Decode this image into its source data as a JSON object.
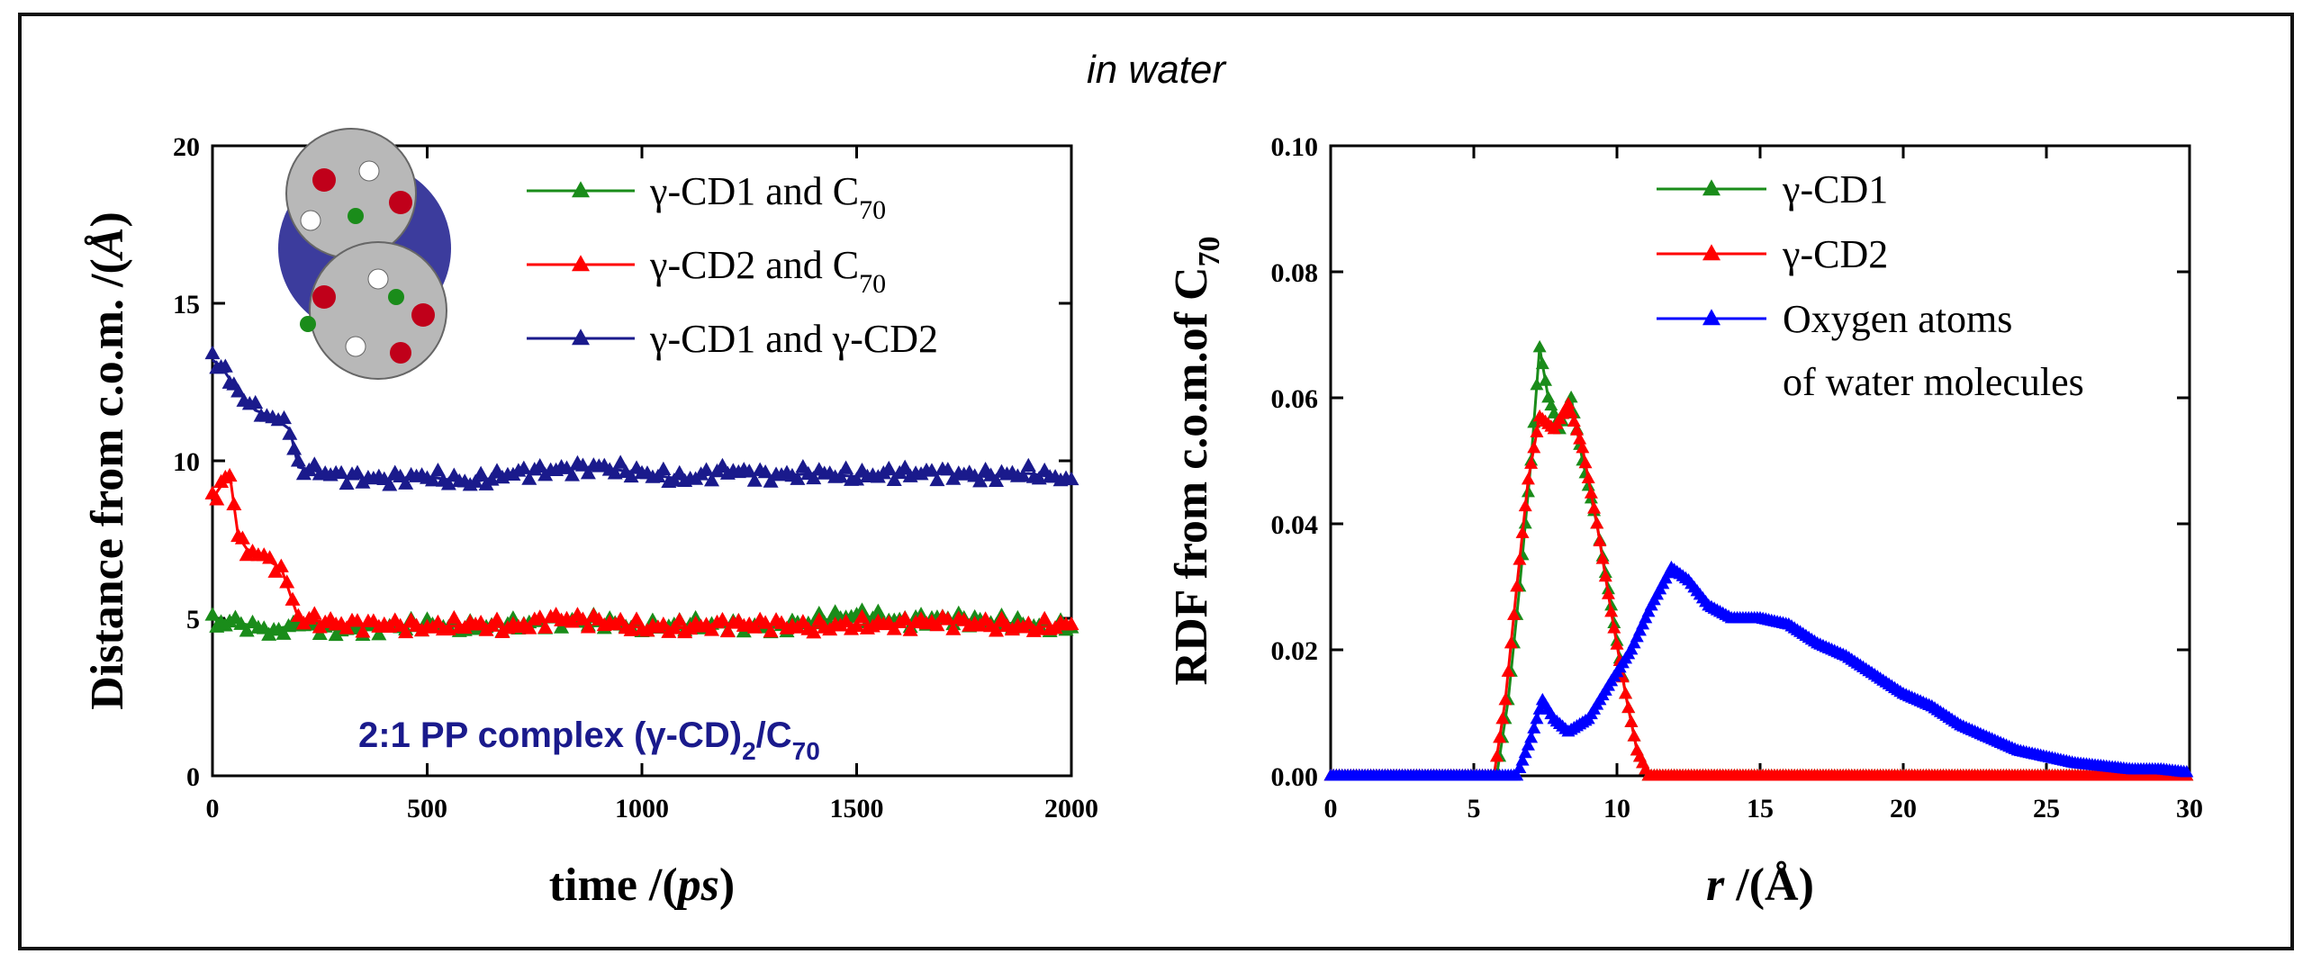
{
  "figure_title": "in water",
  "colors": {
    "green": "#1a8c1a",
    "red": "#ff0000",
    "blue": "#0000ff",
    "navy": "#1a1a8c"
  },
  "chart_data": [
    {
      "type": "scatter",
      "title": "",
      "xlabel": "time /(ps)",
      "xlabel_parts": {
        "main": "time /(",
        "italic": "ps",
        "end": ")"
      },
      "ylabel": "Distance from c.o.m. /(Å)",
      "ylabel_parts": {
        "main": "Distance from c.o.m. /(",
        "italic": "Å",
        "end": ")"
      },
      "xlim": [
        0,
        2000
      ],
      "ylim": [
        0,
        20
      ],
      "xticks": [
        0,
        500,
        1000,
        1500,
        2000
      ],
      "yticks": [
        0,
        5,
        10,
        15,
        20
      ],
      "annotation": "2:1 PP complex (γ-CD)2/C70",
      "annotation_parts": {
        "a": "2:1 PP complex (γ-CD)",
        "sub1": "2",
        "b": "/C",
        "sub2": "70"
      },
      "inset": "molecular structure of the 2:1 γ-CD/C70 complex",
      "series": [
        {
          "name": "γ-CD1 and C70",
          "legend": {
            "main": "γ-CD1 and  C",
            "sub": "70"
          },
          "color": "#1a8c1a",
          "points": [
            [
              0,
              5.1
            ],
            [
              20,
              4.7
            ],
            [
              40,
              4.9
            ],
            [
              80,
              4.8
            ],
            [
              120,
              4.6
            ],
            [
              200,
              4.8
            ],
            [
              300,
              4.6
            ],
            [
              400,
              4.7
            ],
            [
              500,
              4.8
            ],
            [
              600,
              4.7
            ],
            [
              700,
              4.8
            ],
            [
              800,
              4.9
            ],
            [
              900,
              4.9
            ],
            [
              1000,
              4.7
            ],
            [
              1100,
              4.8
            ],
            [
              1200,
              4.8
            ],
            [
              1300,
              4.7
            ],
            [
              1400,
              4.9
            ],
            [
              1500,
              5.1
            ],
            [
              1600,
              4.9
            ],
            [
              1700,
              5.0
            ],
            [
              1800,
              4.9
            ],
            [
              1900,
              4.8
            ],
            [
              2000,
              4.7
            ]
          ]
        },
        {
          "name": "γ-CD2 and C70",
          "legend": {
            "main": "γ-CD2 and  C",
            "sub": "70"
          },
          "color": "#ff0000",
          "points": [
            [
              0,
              8.8
            ],
            [
              20,
              9.2
            ],
            [
              40,
              9.6
            ],
            [
              60,
              7.6
            ],
            [
              80,
              7.2
            ],
            [
              120,
              6.9
            ],
            [
              160,
              6.6
            ],
            [
              200,
              5.0
            ],
            [
              300,
              4.8
            ],
            [
              400,
              4.8
            ],
            [
              500,
              4.7
            ],
            [
              600,
              4.8
            ],
            [
              700,
              4.7
            ],
            [
              800,
              5.0
            ],
            [
              900,
              4.9
            ],
            [
              1000,
              4.7
            ],
            [
              1100,
              4.7
            ],
            [
              1200,
              4.8
            ],
            [
              1300,
              4.8
            ],
            [
              1400,
              4.7
            ],
            [
              1500,
              4.8
            ],
            [
              1600,
              4.8
            ],
            [
              1700,
              4.9
            ],
            [
              1800,
              4.8
            ],
            [
              1900,
              4.7
            ],
            [
              2000,
              4.8
            ]
          ]
        },
        {
          "name": "γ-CD1 and γ-CD2",
          "legend": {
            "main": "γ-CD1 and   γ-CD2",
            "sub": ""
          },
          "color": "#1a1a8c",
          "points": [
            [
              0,
              13.2
            ],
            [
              20,
              13.0
            ],
            [
              40,
              12.6
            ],
            [
              60,
              12.2
            ],
            [
              100,
              11.6
            ],
            [
              140,
              11.4
            ],
            [
              180,
              11.0
            ],
            [
              200,
              9.8
            ],
            [
              300,
              9.5
            ],
            [
              400,
              9.4
            ],
            [
              500,
              9.5
            ],
            [
              600,
              9.3
            ],
            [
              700,
              9.6
            ],
            [
              800,
              9.7
            ],
            [
              900,
              9.8
            ],
            [
              1000,
              9.6
            ],
            [
              1100,
              9.4
            ],
            [
              1200,
              9.7
            ],
            [
              1300,
              9.5
            ],
            [
              1400,
              9.6
            ],
            [
              1500,
              9.5
            ],
            [
              1600,
              9.6
            ],
            [
              1700,
              9.6
            ],
            [
              1800,
              9.5
            ],
            [
              1900,
              9.6
            ],
            [
              2000,
              9.4
            ]
          ]
        }
      ]
    },
    {
      "type": "line",
      "title": "",
      "xlabel": "r /(Å)",
      "xlabel_parts": {
        "main": "r",
        "italic": "",
        "end": " /(Å)"
      },
      "ylabel": "RDF from c.o.m.of C70",
      "ylabel_parts": {
        "main": "RDF from c.o.m.of C",
        "sub": "70"
      },
      "xlim": [
        0,
        30
      ],
      "ylim": [
        0,
        0.1
      ],
      "xticks": [
        0,
        5,
        10,
        15,
        20,
        25,
        30
      ],
      "yticks": [
        "0.00",
        "0.02",
        "0.04",
        "0.06",
        "0.08",
        "0.10"
      ],
      "series": [
        {
          "name": "γ-CD1",
          "color": "#1a8c1a",
          "legend_lines": [
            "γ-CD1"
          ],
          "points": [
            [
              0,
              0
            ],
            [
              5.8,
              0
            ],
            [
              6.2,
              0.012
            ],
            [
              6.6,
              0.03
            ],
            [
              7.0,
              0.05
            ],
            [
              7.3,
              0.068
            ],
            [
              7.6,
              0.06
            ],
            [
              8.0,
              0.055
            ],
            [
              8.4,
              0.06
            ],
            [
              8.8,
              0.05
            ],
            [
              9.3,
              0.04
            ],
            [
              9.8,
              0.027
            ],
            [
              10.3,
              0.013
            ],
            [
              10.7,
              0.004
            ],
            [
              11.1,
              0
            ],
            [
              30,
              0
            ]
          ]
        },
        {
          "name": "γ-CD2",
          "color": "#ff0000",
          "legend_lines": [
            "γ-CD2"
          ],
          "points": [
            [
              0,
              0
            ],
            [
              5.7,
              0
            ],
            [
              6.1,
              0.012
            ],
            [
              6.5,
              0.03
            ],
            [
              6.9,
              0.047
            ],
            [
              7.3,
              0.057
            ],
            [
              7.8,
              0.055
            ],
            [
              8.3,
              0.059
            ],
            [
              8.8,
              0.052
            ],
            [
              9.3,
              0.04
            ],
            [
              9.8,
              0.026
            ],
            [
              10.3,
              0.013
            ],
            [
              10.7,
              0.004
            ],
            [
              11.1,
              0
            ],
            [
              30,
              0
            ]
          ]
        },
        {
          "name": "Oxygen atoms of water molecules",
          "color": "#0000ff",
          "legend_lines": [
            "Oxygen atoms",
            "of water molecules"
          ],
          "points": [
            [
              0,
              0
            ],
            [
              6.5,
              0
            ],
            [
              7.0,
              0.006
            ],
            [
              7.4,
              0.012
            ],
            [
              7.8,
              0.009
            ],
            [
              8.3,
              0.007
            ],
            [
              9.0,
              0.009
            ],
            [
              9.8,
              0.015
            ],
            [
              10.5,
              0.02
            ],
            [
              11.2,
              0.027
            ],
            [
              11.9,
              0.033
            ],
            [
              12.5,
              0.031
            ],
            [
              13.2,
              0.027
            ],
            [
              14.0,
              0.025
            ],
            [
              15.0,
              0.025
            ],
            [
              16.0,
              0.024
            ],
            [
              17.0,
              0.021
            ],
            [
              18.0,
              0.019
            ],
            [
              19.0,
              0.016
            ],
            [
              20.0,
              0.013
            ],
            [
              21.0,
              0.011
            ],
            [
              22.0,
              0.008
            ],
            [
              23.0,
              0.006
            ],
            [
              24.0,
              0.004
            ],
            [
              25.0,
              0.003
            ],
            [
              26.0,
              0.002
            ],
            [
              27.0,
              0.0015
            ],
            [
              28.0,
              0.001
            ],
            [
              29.0,
              0.001
            ],
            [
              30.0,
              0.0005
            ]
          ]
        }
      ]
    }
  ]
}
